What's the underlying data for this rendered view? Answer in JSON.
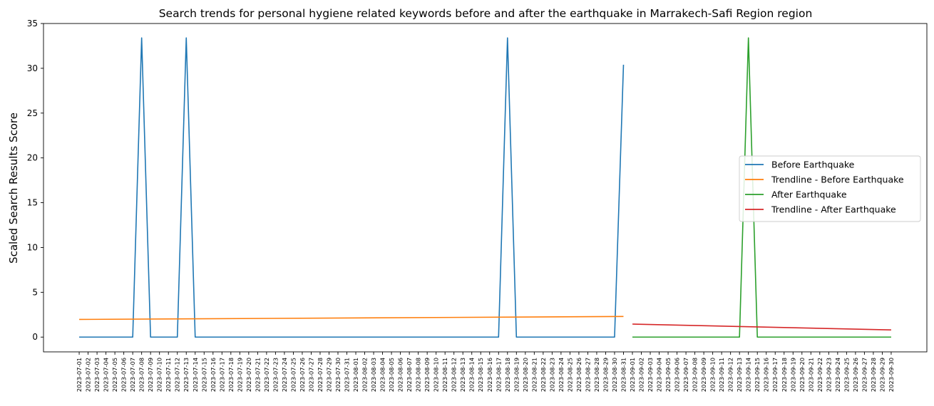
{
  "chart_data": {
    "type": "line",
    "title": "Search trends for personal hygiene related keywords before and after the earthquake in Marrakech-Safi Region region",
    "xlabel": "",
    "ylabel": "Scaled Search Results Score",
    "ylim": [
      -1.65,
      35
    ],
    "yticks": [
      0,
      5,
      10,
      15,
      20,
      25,
      30,
      35
    ],
    "xlim": [
      "2023-06-27",
      "2023-10-04"
    ],
    "x_tick_labels": [
      "2023-07-01",
      "2023-07-02",
      "2023-07-03",
      "2023-07-04",
      "2023-07-05",
      "2023-07-06",
      "2023-07-07",
      "2023-07-08",
      "2023-07-09",
      "2023-07-10",
      "2023-07-11",
      "2023-07-12",
      "2023-07-13",
      "2023-07-14",
      "2023-07-15",
      "2023-07-16",
      "2023-07-17",
      "2023-07-18",
      "2023-07-19",
      "2023-07-20",
      "2023-07-21",
      "2023-07-22",
      "2023-07-23",
      "2023-07-24",
      "2023-07-25",
      "2023-07-26",
      "2023-07-27",
      "2023-07-28",
      "2023-07-29",
      "2023-07-30",
      "2023-07-31",
      "2023-08-01",
      "2023-08-02",
      "2023-08-03",
      "2023-08-04",
      "2023-08-05",
      "2023-08-06",
      "2023-08-07",
      "2023-08-08",
      "2023-08-09",
      "2023-08-10",
      "2023-08-11",
      "2023-08-12",
      "2023-08-13",
      "2023-08-14",
      "2023-08-15",
      "2023-08-16",
      "2023-08-17",
      "2023-08-18",
      "2023-08-19",
      "2023-08-20",
      "2023-08-21",
      "2023-08-22",
      "2023-08-23",
      "2023-08-24",
      "2023-08-25",
      "2023-08-26",
      "2023-08-27",
      "2023-08-28",
      "2023-08-29",
      "2023-08-30",
      "2023-08-31",
      "2023-09-01",
      "2023-09-02",
      "2023-09-03",
      "2023-09-04",
      "2023-09-05",
      "2023-09-06",
      "2023-09-07",
      "2023-09-08",
      "2023-09-09",
      "2023-09-10",
      "2023-09-11",
      "2023-09-12",
      "2023-09-13",
      "2023-09-14",
      "2023-09-15",
      "2023-09-16",
      "2023-09-17",
      "2023-09-18",
      "2023-09-19",
      "2023-09-20",
      "2023-09-21",
      "2023-09-22",
      "2023-09-23",
      "2023-09-24",
      "2023-09-25",
      "2023-09-26",
      "2023-09-27",
      "2023-09-28",
      "2023-09-29",
      "2023-09-30"
    ],
    "grid": false,
    "legend_position": "center-right",
    "series": [
      {
        "name": "Before Earthquake",
        "color": "#1f77b4",
        "x": [
          "2023-07-01",
          "2023-07-02",
          "2023-07-03",
          "2023-07-04",
          "2023-07-05",
          "2023-07-06",
          "2023-07-07",
          "2023-07-08",
          "2023-07-09",
          "2023-07-10",
          "2023-07-11",
          "2023-07-12",
          "2023-07-13",
          "2023-07-14",
          "2023-07-15",
          "2023-07-16",
          "2023-07-17",
          "2023-07-18",
          "2023-07-19",
          "2023-07-20",
          "2023-07-21",
          "2023-07-22",
          "2023-07-23",
          "2023-07-24",
          "2023-07-25",
          "2023-07-26",
          "2023-07-27",
          "2023-07-28",
          "2023-07-29",
          "2023-07-30",
          "2023-07-31",
          "2023-08-01",
          "2023-08-02",
          "2023-08-03",
          "2023-08-04",
          "2023-08-05",
          "2023-08-06",
          "2023-08-07",
          "2023-08-08",
          "2023-08-09",
          "2023-08-10",
          "2023-08-11",
          "2023-08-12",
          "2023-08-13",
          "2023-08-14",
          "2023-08-15",
          "2023-08-16",
          "2023-08-17",
          "2023-08-18",
          "2023-08-19",
          "2023-08-20",
          "2023-08-21",
          "2023-08-22",
          "2023-08-23",
          "2023-08-24",
          "2023-08-25",
          "2023-08-26",
          "2023-08-27",
          "2023-08-28",
          "2023-08-29",
          "2023-08-30",
          "2023-08-31"
        ],
        "values": [
          0,
          0,
          0,
          0,
          0,
          0,
          0,
          33.4,
          0,
          0,
          0,
          0,
          33.4,
          0,
          0,
          0,
          0,
          0,
          0,
          0,
          0,
          0,
          0,
          0,
          0,
          0,
          0,
          0,
          0,
          0,
          0,
          0,
          0,
          0,
          0,
          0,
          0,
          0,
          0,
          0,
          0,
          0,
          0,
          0,
          0,
          0,
          0,
          0,
          33.4,
          0,
          0,
          0,
          0,
          0,
          0,
          0,
          0,
          0,
          0,
          0,
          0,
          30.4
        ]
      },
      {
        "name": "Trendline - Before Earthquake",
        "color": "#ff7f0e",
        "x": [
          "2023-07-01",
          "2023-08-31"
        ],
        "values": [
          1.97,
          2.3
        ]
      },
      {
        "name": "After Earthquake",
        "color": "#2ca02c",
        "x": [
          "2023-09-01",
          "2023-09-02",
          "2023-09-03",
          "2023-09-04",
          "2023-09-05",
          "2023-09-06",
          "2023-09-07",
          "2023-09-08",
          "2023-09-09",
          "2023-09-10",
          "2023-09-11",
          "2023-09-12",
          "2023-09-13",
          "2023-09-14",
          "2023-09-15",
          "2023-09-16",
          "2023-09-17",
          "2023-09-18",
          "2023-09-19",
          "2023-09-20",
          "2023-09-21",
          "2023-09-22",
          "2023-09-23",
          "2023-09-24",
          "2023-09-25",
          "2023-09-26",
          "2023-09-27",
          "2023-09-28",
          "2023-09-29",
          "2023-09-30"
        ],
        "values": [
          0,
          0,
          0,
          0,
          0,
          0,
          0,
          0,
          0,
          0,
          0,
          0,
          0,
          33.4,
          0,
          0,
          0,
          0,
          0,
          0,
          0,
          0,
          0,
          0,
          0,
          0,
          0,
          0,
          0,
          0
        ]
      },
      {
        "name": "Trendline - After Earthquake",
        "color": "#d62728",
        "x": [
          "2023-09-01",
          "2023-09-30"
        ],
        "values": [
          1.45,
          0.8
        ]
      }
    ]
  }
}
